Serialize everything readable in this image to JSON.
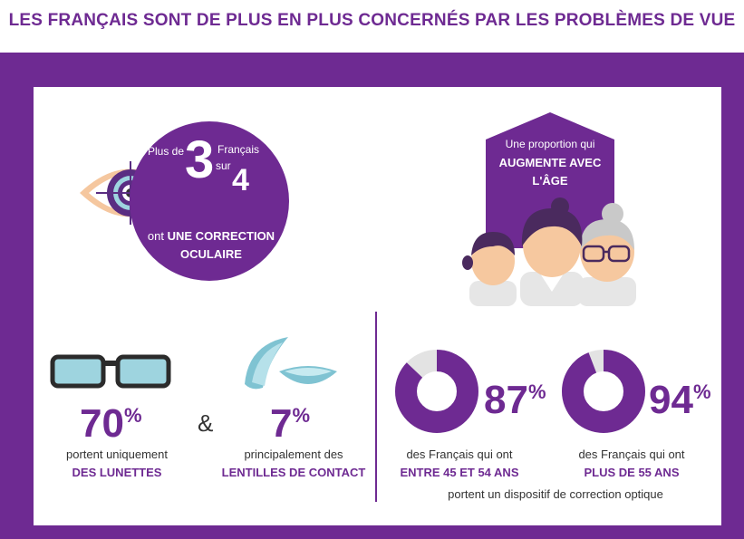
{
  "title": "LES FRANÇAIS SONT DE PLUS EN PLUS CONCERNÉS PAR LES PROBLÈMES DE VUE",
  "stat": {
    "prefix": "Plus de",
    "numerator": "3",
    "unit": "Français",
    "sur": "sur",
    "denominator": "4",
    "line1_normal": "ont",
    "line1_bold": "UNE CORRECTION",
    "line2_bold": "OCULAIRE"
  },
  "age_sign": {
    "line1": "Une proportion qui",
    "line2": "AUGMENTE AVEC",
    "line3": "L'ÂGE"
  },
  "glasses": {
    "percent": "70",
    "percent_sign": "%",
    "line1": "portent uniquement",
    "line2": "DES LUNETTES"
  },
  "ampersand": "&",
  "lenses": {
    "percent": "7",
    "percent_sign": "%",
    "line1": "principalement des",
    "line2": "LENTILLES DE CONTACT"
  },
  "donut1": {
    "value": 87,
    "percent": "87",
    "percent_sign": "%",
    "line1": "des Français qui ont",
    "line2": "ENTRE 45 ET 54 ANS"
  },
  "donut2": {
    "value": 94,
    "percent": "94",
    "percent_sign": "%",
    "line1": "des Français qui ont",
    "line2": "PLUS DE 55 ANS"
  },
  "footer": "portent un dispositif de correction optique",
  "colors": {
    "purple": "#6e2a92",
    "light_grey": "#e3e3e3",
    "lens_blue": "#9ed4df",
    "skin": "#f6c89f",
    "eye_orange": "#f5c79f"
  },
  "icons": [
    "eye-target-icon",
    "house-icon",
    "family-icon",
    "glasses-icon",
    "contact-lens-icon",
    "donut-chart-icon"
  ]
}
